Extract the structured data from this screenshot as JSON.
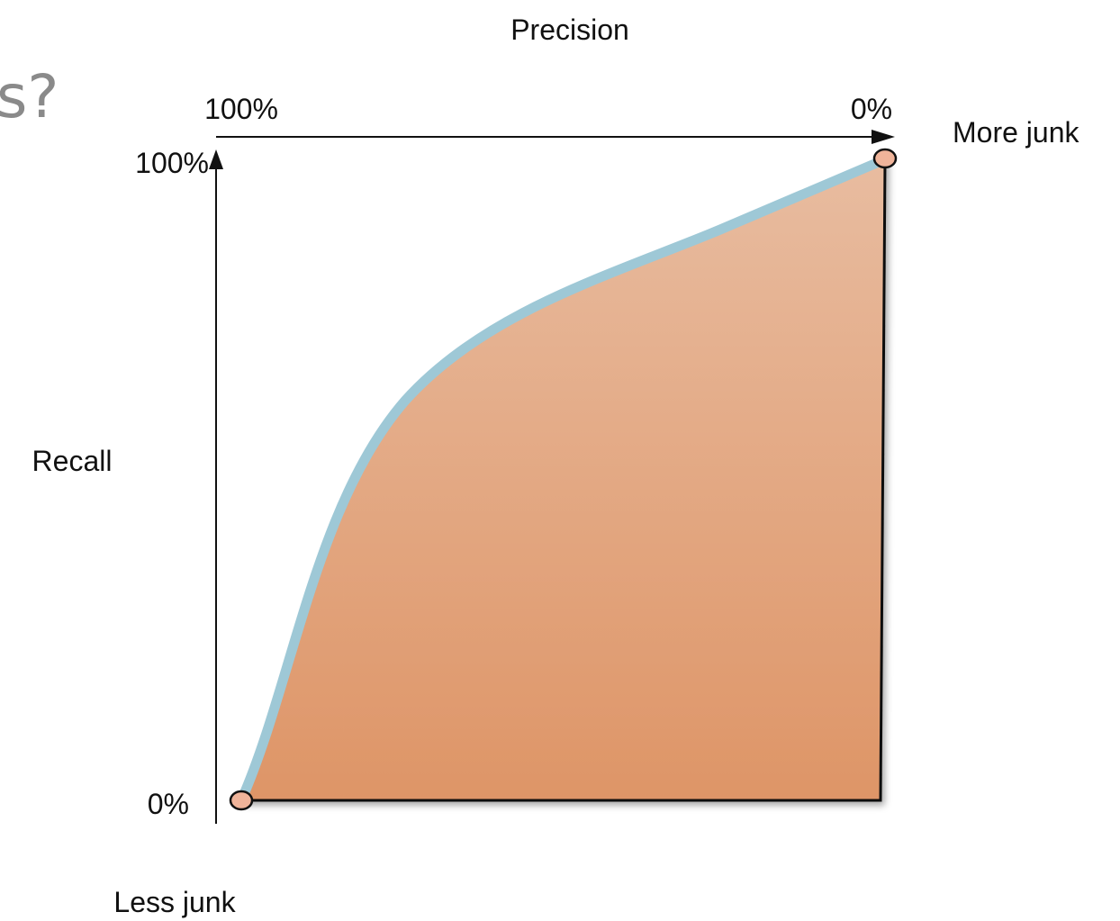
{
  "slide": {
    "title_fragment": "s?"
  },
  "diagram": {
    "top_axis_title": "Precision",
    "top_axis_start_label": "100%",
    "top_axis_end_label": "0%",
    "left_axis_title": "Recall",
    "left_axis_top_label": "100%",
    "left_axis_bottom_label": "0%",
    "annotation_more": "More junk",
    "annotation_less": "Less junk"
  },
  "colors": {
    "curve": "#9ec8d6",
    "fill_top": "#e8bca0",
    "fill_bottom": "#de9567",
    "endpoint_fill": "#f0b49a",
    "axis": "#111111",
    "title_fragment": "#8a8a8a"
  }
}
